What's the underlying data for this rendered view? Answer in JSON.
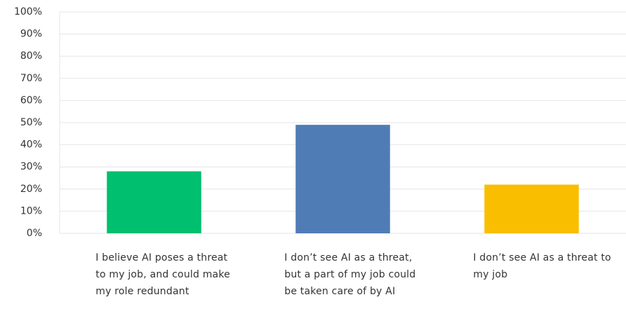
{
  "chart_data": {
    "type": "bar",
    "categories": [
      "I believe AI poses a threat to my job, and could make my role redundant",
      "I don’t see AI as a threat, but a part of my job could be taken care of by AI",
      "I don’t see AI as a threat to my job"
    ],
    "values": [
      28,
      49,
      22
    ],
    "colors": [
      "#00bf6f",
      "#507cb6",
      "#f9be00"
    ],
    "ylim": [
      0,
      100
    ],
    "yticks": [
      {
        "value": 0,
        "label": "0%"
      },
      {
        "value": 10,
        "label": "10%"
      },
      {
        "value": 20,
        "label": "20%"
      },
      {
        "value": 30,
        "label": "30%"
      },
      {
        "value": 40,
        "label": "40%"
      },
      {
        "value": 50,
        "label": "50%"
      },
      {
        "value": 60,
        "label": "60%"
      },
      {
        "value": 70,
        "label": "70%"
      },
      {
        "value": 80,
        "label": "80%"
      },
      {
        "value": 90,
        "label": "90%"
      },
      {
        "value": 100,
        "label": "100%"
      }
    ],
    "grid": true
  }
}
